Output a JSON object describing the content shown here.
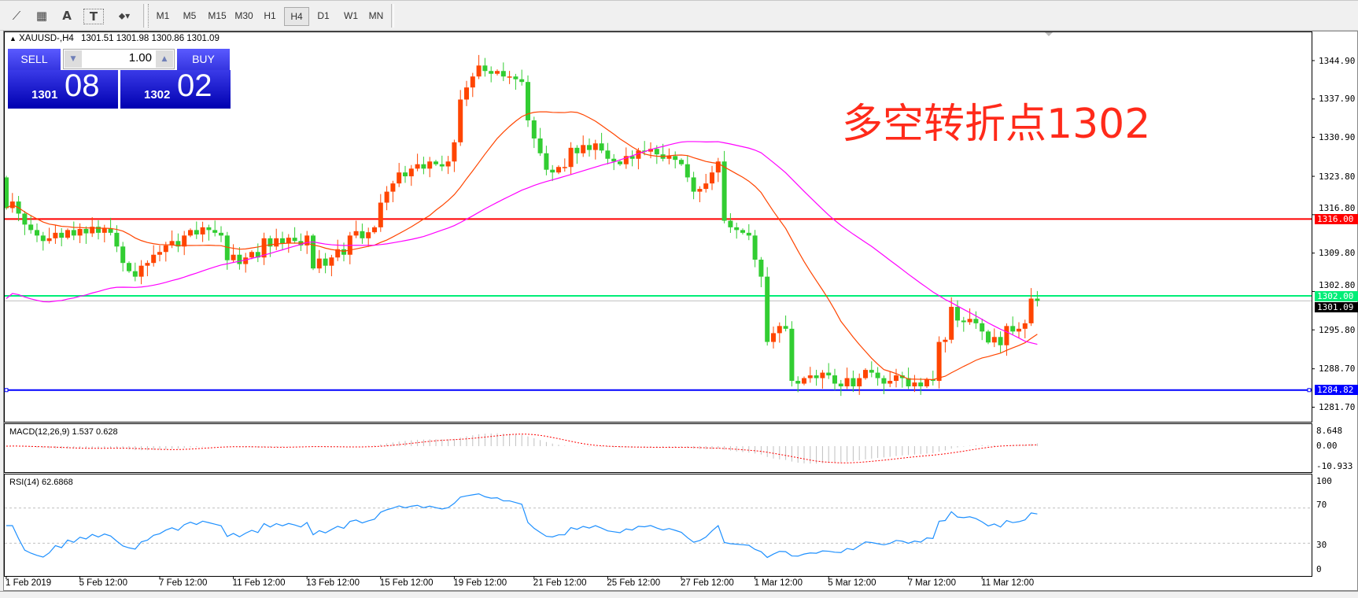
{
  "toolbar": {
    "icons": [
      "fibonacci-expansion-icon",
      "fibonacci-fan-icon",
      "text-icon",
      "text-label-icon",
      "arrows-dropdown-icon"
    ],
    "icon_glyphs": [
      "⟋",
      "▦",
      "A",
      "T",
      "⬥▾"
    ],
    "timeframes": [
      "M1",
      "M5",
      "M15",
      "M30",
      "H1",
      "H4",
      "D1",
      "W1",
      "MN"
    ],
    "active_timeframe": "H4"
  },
  "chart_header": {
    "symbol": "XAUUSD-,H4",
    "ohlc": "1301.51 1301.98 1300.86 1301.09"
  },
  "trade_panel": {
    "sell_label": "SELL",
    "buy_label": "BUY",
    "lot": "1.00",
    "sell_big": "1301",
    "sell_small": "08",
    "buy_big": "1302",
    "buy_small": "02"
  },
  "annotation": "多空转折点1302",
  "price_axis": [
    "1344.90",
    "1337.90",
    "1330.90",
    "1323.80",
    "1316.80",
    "1309.80",
    "1302.80",
    "1295.80",
    "1288.70",
    "1281.70"
  ],
  "levels": [
    {
      "price": 1316.0,
      "label": "1316.00",
      "color": "#ff0000"
    },
    {
      "price": 1302.0,
      "label": "1302.00",
      "color": "#00ee77"
    },
    {
      "price": 1284.82,
      "label": "1284.82",
      "color": "#0000ff"
    }
  ],
  "current_price": {
    "price": 1301.09,
    "label": "1301.09"
  },
  "macd": {
    "label": "MACD(12,26,9) 1.537 0.628",
    "ticks": [
      "8.648",
      "0.00",
      "-10.933"
    ]
  },
  "rsi": {
    "label": "RSI(14) 62.6868",
    "ticks": [
      "100",
      "70",
      "30",
      "0"
    ],
    "levels": [
      70,
      30
    ]
  },
  "time_axis": [
    "1 Feb 2019",
    "5 Feb 12:00",
    "7 Feb 12:00",
    "11 Feb 12:00",
    "13 Feb 12:00",
    "15 Feb 12:00",
    "19 Feb 12:00",
    "21 Feb 12:00",
    "25 Feb 12:00",
    "27 Feb 12:00",
    "1 Mar 12:00",
    "5 Mar 12:00",
    "7 Mar 12:00",
    "11 Mar 12:00"
  ],
  "chart_data": {
    "type": "candlestick",
    "symbol": "XAUUSD-",
    "timeframe": "H4",
    "ylim": [
      1278.5,
      1350.5
    ],
    "up_color": "#ff4500",
    "down_color": "#32cd32",
    "ma_colors": [
      "#ff4500",
      "#ff00ff"
    ],
    "first_open": 1323.6,
    "closes": [
      1318.0,
      1319.2,
      1317.0,
      1315.0,
      1314.0,
      1313.0,
      1312.0,
      1312.5,
      1313.5,
      1312.6,
      1314.0,
      1313.0,
      1314.2,
      1313.4,
      1314.6,
      1313.5,
      1314.3,
      1313.5,
      1311.0,
      1308.0,
      1306.5,
      1305.5,
      1307.5,
      1308.0,
      1309.5,
      1310.0,
      1311.2,
      1312.0,
      1311.0,
      1313.0,
      1314.0,
      1313.2,
      1314.5,
      1314.0,
      1313.5,
      1313.0,
      1308.5,
      1309.5,
      1307.8,
      1309.0,
      1310.0,
      1309.0,
      1312.5,
      1311.0,
      1312.5,
      1311.6,
      1312.6,
      1312.0,
      1311.2,
      1313.0,
      1307.0,
      1308.8,
      1307.5,
      1309.0,
      1310.5,
      1309.5,
      1313.0,
      1313.8,
      1312.5,
      1313.6,
      1314.5,
      1319.0,
      1321.0,
      1322.5,
      1324.5,
      1323.8,
      1325.2,
      1326.0,
      1325.2,
      1326.5,
      1326.0,
      1325.6,
      1326.5,
      1330.0,
      1337.8,
      1340.0,
      1342.0,
      1344.0,
      1343.0,
      1342.5,
      1343.0,
      1342.0,
      1342.0,
      1341.5,
      1341.0,
      1334.0,
      1330.7,
      1328.0,
      1325.0,
      1324.5,
      1325.5,
      1325.5,
      1329.0,
      1328.0,
      1329.5,
      1328.6,
      1329.8,
      1328.5,
      1327.0,
      1326.5,
      1326.0,
      1327.5,
      1327.0,
      1328.5,
      1328.3,
      1328.8,
      1327.8,
      1327.0,
      1327.5,
      1326.8,
      1326.0,
      1323.6,
      1321.0,
      1321.5,
      1322.5,
      1324.5,
      1326.5,
      1315.7,
      1314.5,
      1314.0,
      1313.5,
      1313.0,
      1308.6,
      1305.5,
      1293.6,
      1295.2,
      1296.5,
      1296.0,
      1286.5,
      1286.0,
      1287.0,
      1287.5,
      1287.0,
      1288.0,
      1287.5,
      1286.0,
      1285.5,
      1287.0,
      1285.5,
      1287.0,
      1288.5,
      1288.0,
      1287.0,
      1286.0,
      1286.5,
      1287.5,
      1287.0,
      1285.5,
      1286.2,
      1285.5,
      1286.8,
      1286.5,
      1293.6,
      1294.0,
      1300.0,
      1297.5,
      1297.2,
      1297.8,
      1297.0,
      1295.5,
      1293.5,
      1294.5,
      1293.0,
      1296.5,
      1295.5,
      1296.0,
      1297.0,
      1301.5,
      1301.09
    ]
  }
}
